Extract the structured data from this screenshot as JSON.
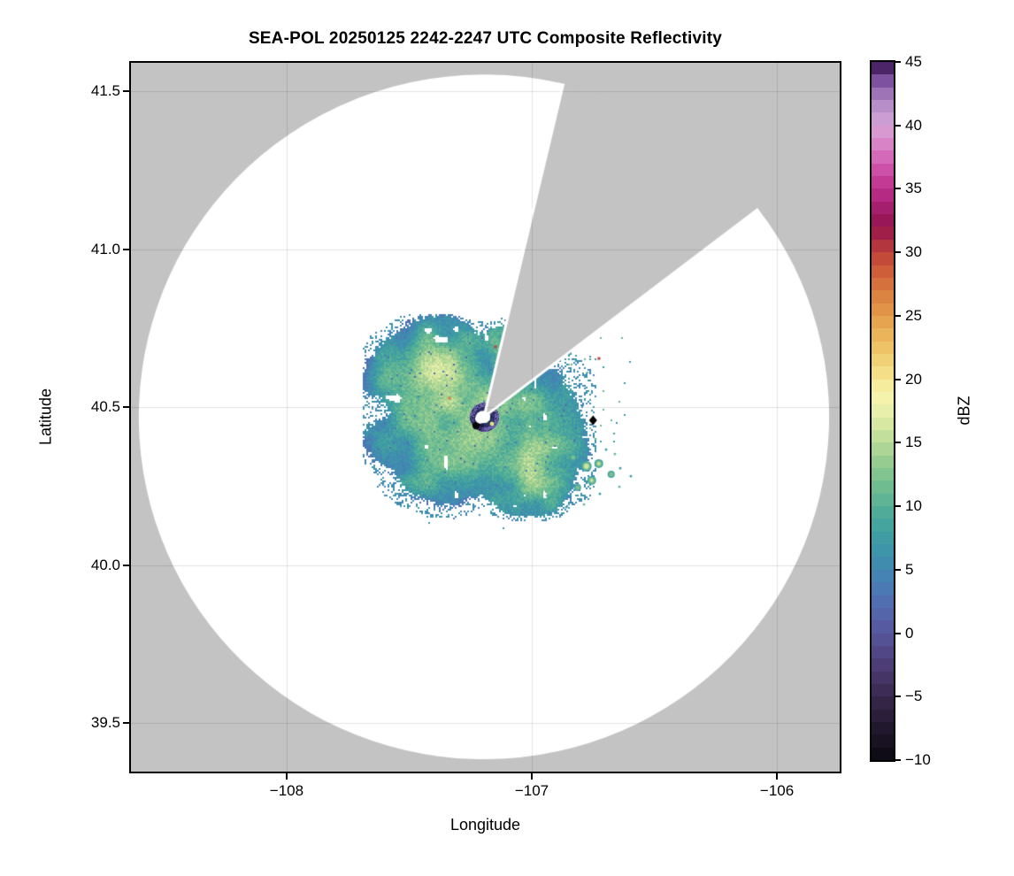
{
  "title": "SEA-POL 20250125 2242-2247 UTC Composite Reflectivity",
  "chart_data": {
    "type": "heatmap",
    "title": "SEA-POL 20250125 2242-2247 UTC Composite Reflectivity",
    "xlabel": "Longitude",
    "ylabel": "Latitude",
    "x_ticks": [
      -108,
      -107,
      -106
    ],
    "x_tick_labels": [
      "−108",
      "−107",
      "−106"
    ],
    "y_ticks": [
      41.5,
      41.0,
      40.5,
      40.0,
      39.5
    ],
    "y_tick_labels": [
      "41.5",
      "41.0",
      "40.5",
      "40.0",
      "39.5"
    ],
    "xlim": [
      -108.635,
      -105.744
    ],
    "ylim": [
      39.346,
      41.59
    ],
    "grid": true,
    "no_data_color": "#c3c3c3",
    "scanned_area_color": "#ffffff",
    "colorbar": {
      "label": "dBZ",
      "min": -10,
      "max": 45,
      "ticks": [
        45,
        40,
        35,
        30,
        25,
        20,
        15,
        10,
        5,
        0,
        -5,
        -10
      ],
      "tick_labels": [
        "45",
        "40",
        "35",
        "30",
        "25",
        "20",
        "15",
        "10",
        "5",
        "0",
        "−5",
        "−10"
      ],
      "band_step_dbz": 1
    },
    "colormap_stops": [
      [
        -10,
        "#0a0912"
      ],
      [
        -9,
        "#140f1c"
      ],
      [
        -8,
        "#1d1527"
      ],
      [
        -7,
        "#261b33"
      ],
      [
        -6,
        "#2f2140"
      ],
      [
        -5,
        "#38284e"
      ],
      [
        -4,
        "#41305e"
      ],
      [
        -3,
        "#49386e"
      ],
      [
        -2,
        "#50427e"
      ],
      [
        -1,
        "#544c8e"
      ],
      [
        0,
        "#56569c"
      ],
      [
        1,
        "#5660a6"
      ],
      [
        2,
        "#536aae"
      ],
      [
        3,
        "#4e74b2"
      ],
      [
        4,
        "#487eb4"
      ],
      [
        5,
        "#4288b2"
      ],
      [
        6,
        "#3e90ac"
      ],
      [
        7,
        "#3d98a6"
      ],
      [
        8,
        "#42a0a0"
      ],
      [
        9,
        "#4aa89b"
      ],
      [
        10,
        "#56b096"
      ],
      [
        11,
        "#66b892"
      ],
      [
        12,
        "#78c090"
      ],
      [
        13,
        "#8cc890"
      ],
      [
        14,
        "#a2d092"
      ],
      [
        15,
        "#b8da97"
      ],
      [
        16,
        "#cce49e"
      ],
      [
        17,
        "#e0eca6"
      ],
      [
        18,
        "#f0f2ae"
      ],
      [
        19,
        "#f7f2a8"
      ],
      [
        20,
        "#f5e692"
      ],
      [
        21,
        "#f2d87e"
      ],
      [
        22,
        "#efca6e"
      ],
      [
        23,
        "#ecbc60"
      ],
      [
        24,
        "#e8ac54"
      ],
      [
        25,
        "#e39c4b"
      ],
      [
        26,
        "#de8c44"
      ],
      [
        27,
        "#d87a3e"
      ],
      [
        28,
        "#d1683a"
      ],
      [
        29,
        "#c95437"
      ],
      [
        30,
        "#bd4038"
      ],
      [
        31,
        "#a92a43"
      ],
      [
        32,
        "#94144d"
      ],
      [
        33,
        "#9c1a62"
      ],
      [
        34,
        "#ac2478"
      ],
      [
        35,
        "#bd308c"
      ],
      [
        36,
        "#c8449e"
      ],
      [
        37,
        "#d05cb0"
      ],
      [
        38,
        "#d676c0"
      ],
      [
        39,
        "#da90cc"
      ],
      [
        40,
        "#d5a0d4"
      ],
      [
        41,
        "#c29ad0"
      ],
      [
        42,
        "#ab82c0"
      ],
      [
        43,
        "#9166ae"
      ],
      [
        44,
        "#6a3c90"
      ],
      [
        45,
        "#2e0c40"
      ]
    ],
    "radar": {
      "name": "SEA-POL",
      "site_lon": -107.195,
      "site_lat": 40.469,
      "range_deg_lon": 1.408,
      "range_deg_lat": 1.084,
      "missing_sector_azimuth_deg": [
        13.3,
        52.6
      ]
    },
    "echo": {
      "primary_region": {
        "center_lon": -107.23,
        "center_lat": 40.45,
        "extent_lon": [
          -107.7,
          -106.65
        ],
        "extent_lat": [
          40.17,
          40.76
        ],
        "typical_dbz": [
          5,
          17
        ]
      },
      "secondary_cluster": {
        "center_lon": -106.77,
        "center_lat": 40.31,
        "typical_dbz": [
          8,
          16
        ]
      },
      "center_ring_artifact": {
        "radius_km": 5,
        "dbz_range": [
          -10,
          5
        ]
      },
      "clutter_points": [
        {
          "lon": -107.148,
          "lat": 40.691,
          "dbz": 30
        },
        {
          "lon": -106.726,
          "lat": 40.654,
          "dbz": 30
        },
        {
          "lon": -107.336,
          "lat": 40.528,
          "dbz": 27
        },
        {
          "lon": -107.137,
          "lat": 40.607,
          "dbz": 29
        }
      ]
    },
    "marker": {
      "shape": "diamond",
      "lon": -106.75,
      "lat": 40.458,
      "color": "#000000"
    }
  }
}
